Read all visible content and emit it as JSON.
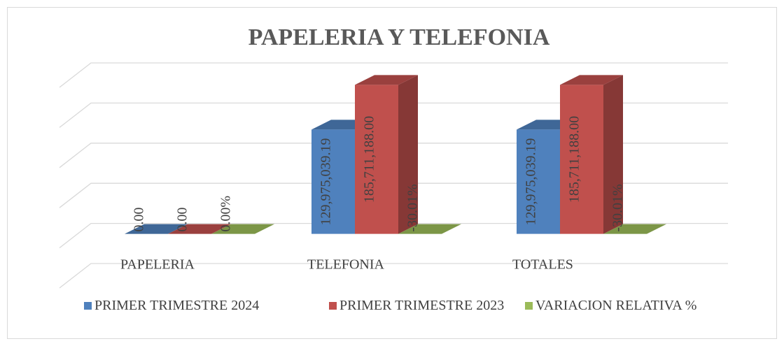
{
  "chart_data": {
    "type": "bar3d",
    "title": "PAPELERIA Y TELEFONIA",
    "categories": [
      "PAPELERIA",
      "TELEFONIA",
      "TOTALES"
    ],
    "series": [
      {
        "name": "PRIMER TRIMESTRE 2024",
        "color": "#4f81bd",
        "values": [
          0,
          129975039.19,
          129975039.19
        ],
        "value_labels": [
          "0.00",
          "129,975,039.19",
          "129,975,039.19"
        ]
      },
      {
        "name": "PRIMER TRIMESTRE 2023",
        "color": "#c0504d",
        "values": [
          0,
          185711188,
          185711188
        ],
        "value_labels": [
          "0.00",
          "185,711,188.00",
          "185,711,188.00"
        ]
      },
      {
        "name": "VARIACION RELATIVA %",
        "color": "#9bbb59",
        "values": [
          0,
          -30.01,
          -30.01
        ],
        "value_labels": [
          "0.00%",
          "-30.01%",
          "-30.01%"
        ]
      }
    ],
    "ylim": [
      -50000000,
      200000000
    ],
    "yticks": [
      -50000000,
      0,
      50000000,
      100000000,
      150000000,
      200000000
    ],
    "grid": true,
    "legend": "bottom"
  }
}
